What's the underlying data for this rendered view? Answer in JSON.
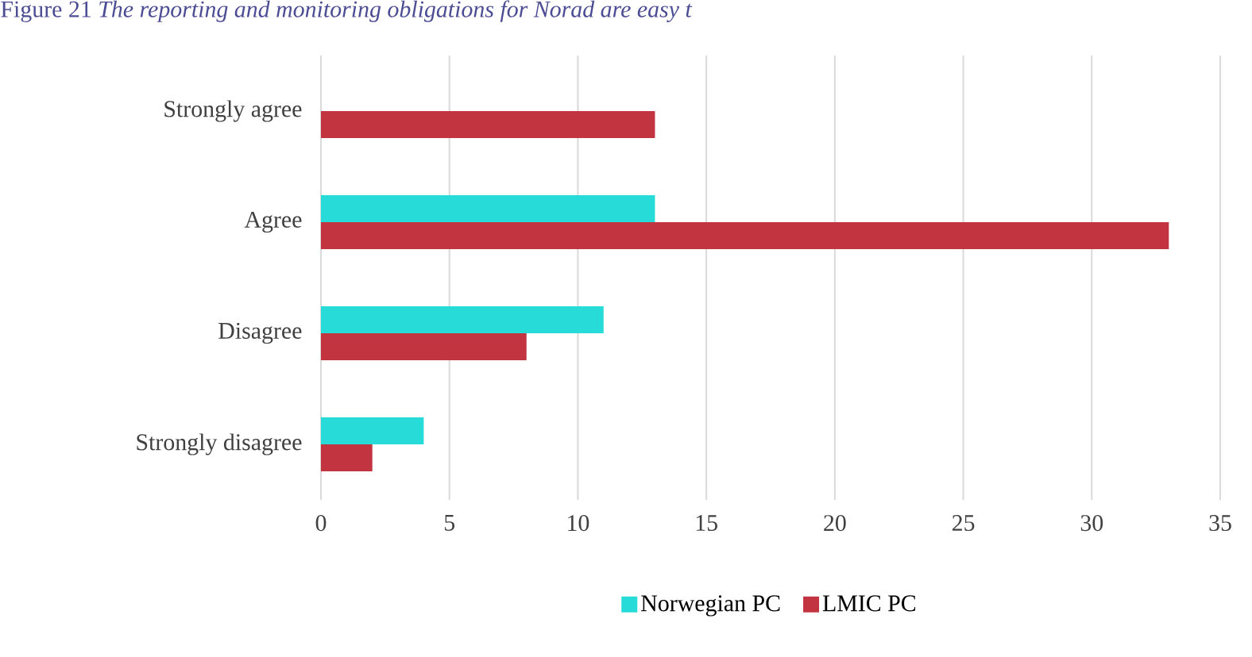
{
  "chart_data": {
    "type": "bar",
    "orientation": "horizontal",
    "title": "Figure 21 *The reporting and monitoring obligations for Norad are easy t*",
    "categories": [
      "Strongly agree",
      "Agree",
      "Disagree",
      "Strongly disagree"
    ],
    "series": [
      {
        "name": "Norwegian PC",
        "color": "#26dbd8",
        "values": [
          0,
          13,
          11,
          4
        ]
      },
      {
        "name": "LMIC PC",
        "color": "#c23440",
        "values": [
          13,
          33,
          8,
          2
        ]
      }
    ],
    "xlim": [
      0,
      35
    ],
    "xticks": [
      0,
      5,
      10,
      15,
      20,
      25,
      30,
      35
    ],
    "grid": "x",
    "legend": "bottom"
  }
}
